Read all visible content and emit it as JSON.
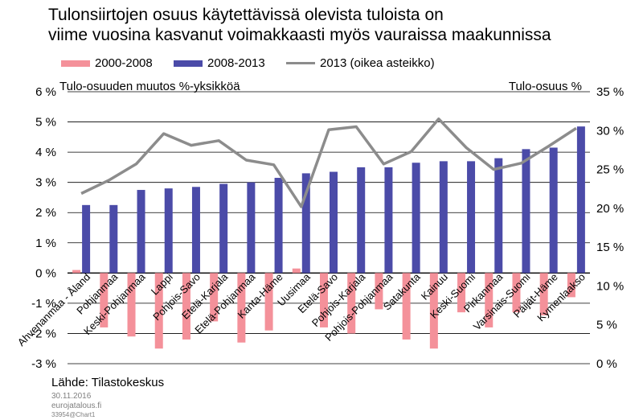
{
  "header": {
    "title_line1": "Tulonsiirtojen osuus käytettävissä olevista tuloista on",
    "title_line2": "viime vuosina kasvanut voimakkaasti myös vauraissa maakunnissa"
  },
  "colors": {
    "series_2000_2008": "#f4919a",
    "series_2008_2013": "#4b4ba8",
    "series_2013": "#8c8c8c",
    "grid": "#000000"
  },
  "chart_data": {
    "type": "bar",
    "left_axis_title": "Tulo-osuuden muutos %-yksikköä",
    "right_axis_title": "Tulo-osuus %",
    "ylim_left": [
      -3,
      6
    ],
    "ylim_right": [
      0,
      35
    ],
    "left_ticks": [
      "-3 %",
      "-2 %",
      "-1 %",
      "0 %",
      "1 %",
      "2 %",
      "3 %",
      "4 %",
      "5 %",
      "6 %"
    ],
    "right_ticks": [
      "0 %",
      "5 %",
      "10 %",
      "15 %",
      "20 %",
      "25 %",
      "30 %",
      "35 %"
    ],
    "categories": [
      "Ahvenanmaa - Åland",
      "Pohjanmaa",
      "Keski-Pohjanmaa",
      "Lappi",
      "Pohjois-Savo",
      "Etelä-Karjala",
      "Etelä-Pohjanmaa",
      "Kanta-Häme",
      "Uusimaa",
      "Etelä-Savo",
      "Pohjois-Karjala",
      "Pohjois-Pohjanmaa",
      "Satakunta",
      "Kainuu",
      "Keski-Suomi",
      "Pirkanmaa",
      "Varsinais-Suomi",
      "Päijät-Häme",
      "Kymenlaakso"
    ],
    "series": [
      {
        "name": "2000-2008",
        "type": "bar",
        "axis": "left",
        "values": [
          0.1,
          -1.8,
          -2.1,
          -2.5,
          -2.2,
          -1.6,
          -2.3,
          -1.9,
          0.15,
          -1.8,
          -2.0,
          -1.2,
          -2.2,
          -2.5,
          -1.3,
          -1.8,
          -1.3,
          -1.4,
          -0.8
        ]
      },
      {
        "name": "2008-2013",
        "type": "bar",
        "axis": "left",
        "values": [
          2.25,
          2.25,
          2.75,
          2.8,
          2.85,
          2.95,
          3.0,
          3.15,
          3.3,
          3.35,
          3.5,
          3.5,
          3.65,
          3.7,
          3.7,
          3.8,
          4.1,
          4.15,
          4.85
        ]
      },
      {
        "name": "2013 (oikea asteikko)",
        "type": "line",
        "axis": "right",
        "values": [
          21.9,
          23.6,
          25.7,
          29.6,
          28.1,
          28.7,
          26.2,
          25.6,
          20.2,
          30.1,
          30.5,
          25.7,
          27.3,
          31.5,
          27.8,
          25.0,
          25.8,
          28.0,
          30.3
        ]
      }
    ]
  },
  "footer": {
    "source": "Lähde: Tilastokeskus",
    "date": "30.11.2016",
    "site": "eurojatalous.fi",
    "chart_id": "33954@Chart1"
  }
}
